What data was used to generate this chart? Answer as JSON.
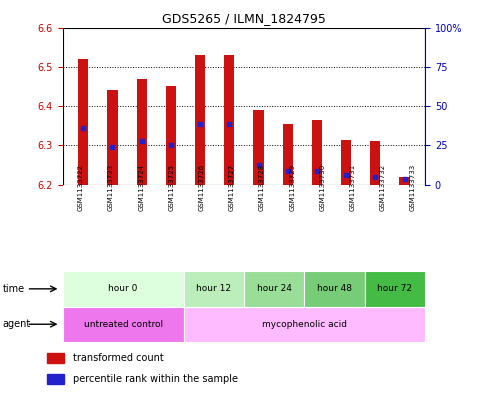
{
  "title": "GDS5265 / ILMN_1824795",
  "samples": [
    "GSM1133722",
    "GSM1133723",
    "GSM1133724",
    "GSM1133725",
    "GSM1133726",
    "GSM1133727",
    "GSM1133728",
    "GSM1133729",
    "GSM1133730",
    "GSM1133731",
    "GSM1133732",
    "GSM1133733"
  ],
  "bar_tops": [
    6.52,
    6.44,
    6.47,
    6.45,
    6.53,
    6.53,
    6.39,
    6.355,
    6.365,
    6.315,
    6.31,
    6.22
  ],
  "bar_bottoms": [
    6.2,
    6.2,
    6.2,
    6.2,
    6.2,
    6.2,
    6.2,
    6.2,
    6.2,
    6.2,
    6.2,
    6.2
  ],
  "blue_dots": [
    6.345,
    6.295,
    6.31,
    6.3,
    6.355,
    6.355,
    6.25,
    6.235,
    6.235,
    6.225,
    6.22,
    6.215
  ],
  "ylim": [
    6.2,
    6.6
  ],
  "yticks_left": [
    6.2,
    6.3,
    6.4,
    6.5,
    6.6
  ],
  "yticks_right_labels": [
    "0",
    "25",
    "50",
    "75",
    "100%"
  ],
  "left_color": "#cc0000",
  "right_color": "#0000bb",
  "bar_color": "#cc1111",
  "dot_color": "#2222cc",
  "bg_color": "#ffffff",
  "grid_color": "#000000",
  "time_groups": [
    {
      "label": "hour 0",
      "start": 0,
      "end": 3,
      "color": "#ddffdd"
    },
    {
      "label": "hour 12",
      "start": 4,
      "end": 5,
      "color": "#bbeebb"
    },
    {
      "label": "hour 24",
      "start": 6,
      "end": 7,
      "color": "#99dd99"
    },
    {
      "label": "hour 48",
      "start": 8,
      "end": 9,
      "color": "#77cc77"
    },
    {
      "label": "hour 72",
      "start": 10,
      "end": 11,
      "color": "#44bb44"
    }
  ],
  "agent_groups": [
    {
      "label": "untreated control",
      "start": 0,
      "end": 3,
      "color": "#ee77ee"
    },
    {
      "label": "mycophenolic acid",
      "start": 4,
      "end": 11,
      "color": "#ffbbff"
    }
  ],
  "legend_items": [
    {
      "color": "#cc1111",
      "label": "transformed count"
    },
    {
      "color": "#2222cc",
      "label": "percentile rank within the sample"
    }
  ]
}
